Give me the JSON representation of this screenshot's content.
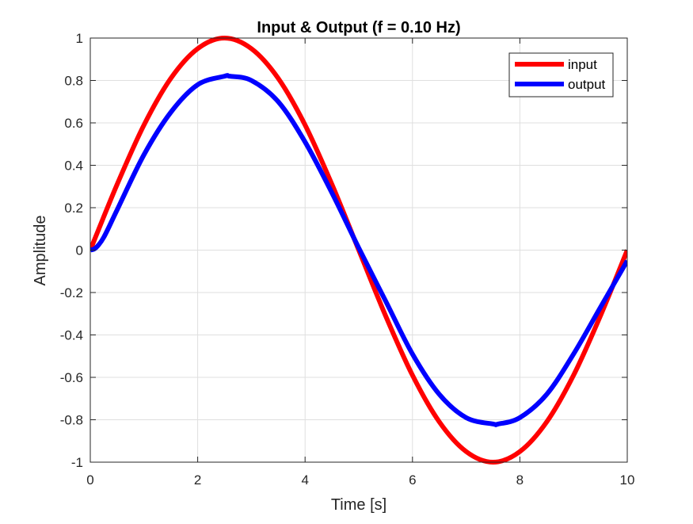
{
  "chart_data": {
    "type": "line",
    "title": "Input & Output (f = 0.10 Hz)",
    "xlabel": "Time [s]",
    "ylabel": "Amplitude",
    "xlim": [
      0,
      10
    ],
    "ylim": [
      -1,
      1
    ],
    "grid": true,
    "legend_position": "top-right",
    "x_ticks": [
      0,
      2,
      4,
      6,
      8,
      10
    ],
    "x_tick_labels": [
      "0",
      "2",
      "4",
      "6",
      "8",
      "10"
    ],
    "y_ticks": [
      -1,
      -0.8,
      -0.6,
      -0.4,
      -0.2,
      0,
      0.2,
      0.4,
      0.6,
      0.8,
      1
    ],
    "y_tick_labels": [
      "-1",
      "-0.8",
      "-0.6",
      "-0.4",
      "-0.2",
      "0",
      "0.2",
      "0.4",
      "0.6",
      "0.8",
      "1"
    ],
    "series": [
      {
        "name": "input",
        "color": "#ff0000",
        "x": [
          0,
          0.5,
          1,
          1.5,
          2,
          2.5,
          3,
          3.5,
          4,
          4.5,
          5,
          5.5,
          6,
          6.5,
          7,
          7.5,
          8,
          8.5,
          9,
          9.5,
          10
        ],
        "y": [
          0,
          0.31,
          0.59,
          0.81,
          0.95,
          1,
          0.95,
          0.81,
          0.59,
          0.31,
          0,
          -0.31,
          -0.59,
          -0.81,
          -0.95,
          -1,
          -0.95,
          -0.81,
          -0.59,
          -0.31,
          0
        ]
      },
      {
        "name": "output",
        "color": "#0000ff",
        "x": [
          0,
          0.1,
          0.25,
          0.5,
          1,
          1.5,
          2,
          2.5,
          2.6,
          3,
          3.5,
          4,
          4.5,
          5,
          5.5,
          6,
          6.5,
          7,
          7.5,
          7.6,
          8,
          8.5,
          9,
          9.5,
          10
        ],
        "y": [
          0,
          0.01,
          0.06,
          0.19,
          0.45,
          0.65,
          0.78,
          0.82,
          0.82,
          0.8,
          0.7,
          0.51,
          0.27,
          0.01,
          -0.24,
          -0.49,
          -0.68,
          -0.79,
          -0.82,
          -0.82,
          -0.79,
          -0.68,
          -0.49,
          -0.27,
          -0.05
        ]
      }
    ]
  }
}
